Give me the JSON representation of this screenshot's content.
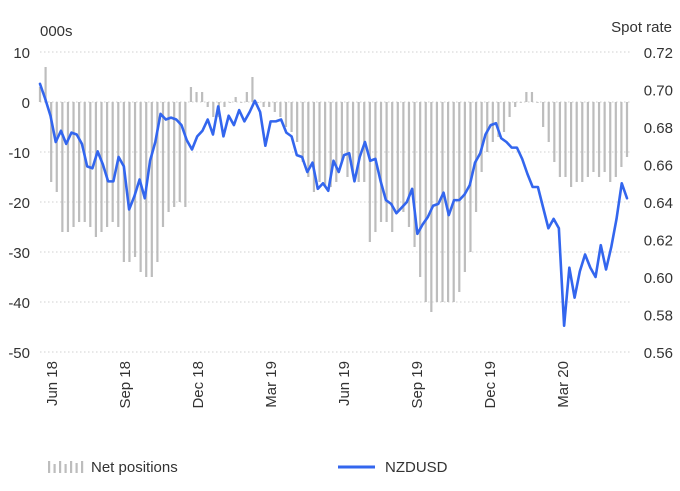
{
  "chart_data": {
    "type": "bar+line",
    "title": "",
    "y_left": {
      "unit_label": "000s",
      "min": -50,
      "max": 10,
      "ticks": [
        10,
        0,
        -10,
        -20,
        -30,
        -40,
        -50
      ]
    },
    "y_right": {
      "unit_label": "Spot rate",
      "min": 0.56,
      "max": 0.72,
      "ticks": [
        "0.72",
        "0.70",
        "0.68",
        "0.66",
        "0.64",
        "0.62",
        "0.60",
        "0.58",
        "0.56"
      ]
    },
    "x_tick_labels": [
      "Jun 18",
      "Sep 18",
      "Dec 18",
      "Mar 19",
      "Jun 19",
      "Sep 19",
      "Dec 19",
      "Mar 20"
    ],
    "grid": true,
    "legend": {
      "position": "bottom",
      "bar_label": "Net positions",
      "line_label": "NZDUSD"
    },
    "colors": {
      "bars": "#bdbdbd",
      "line": "#3366ee",
      "grid": "#d0d0d0",
      "text": "#333333"
    },
    "series": [
      {
        "name": "Net positions",
        "kind": "bar",
        "axis": "left",
        "values": [
          3,
          7,
          -16,
          -18,
          -26,
          -26,
          -25,
          -24,
          -24,
          -25,
          -27,
          -26,
          -25,
          -24,
          -25,
          -32,
          -32,
          -31,
          -34,
          -35,
          -35,
          -32,
          -25,
          -22,
          -21,
          -20,
          -21,
          3,
          2,
          2,
          -1,
          -3,
          -3,
          -1,
          0,
          1,
          0,
          2,
          5,
          0,
          -1,
          -1,
          -2,
          -3,
          -5,
          -6,
          -8,
          -12,
          -15,
          -18,
          -16,
          -17,
          -17,
          -16,
          -12,
          -15,
          -14,
          -16,
          -16,
          -28,
          -26,
          -24,
          -24,
          -26,
          -22,
          -22,
          -25,
          -29,
          -35,
          -40,
          -42,
          -40,
          -40,
          -40,
          -40,
          -38,
          -34,
          -30,
          -22,
          -14,
          -10,
          -8,
          -7,
          -6,
          -3,
          -1,
          0,
          2,
          2,
          0,
          -5,
          -8,
          -12,
          -15,
          -15,
          -17,
          -16,
          -16,
          -15,
          -14,
          -15,
          -14,
          -16,
          -15,
          -13,
          -11
        ]
      },
      {
        "name": "NZDUSD",
        "kind": "line",
        "axis": "right",
        "values": [
          0.703,
          0.695,
          0.686,
          0.672,
          0.678,
          0.671,
          0.677,
          0.676,
          0.671,
          0.659,
          0.658,
          0.667,
          0.66,
          0.651,
          0.651,
          0.664,
          0.659,
          0.636,
          0.643,
          0.652,
          0.642,
          0.662,
          0.672,
          0.687,
          0.684,
          0.685,
          0.684,
          0.681,
          0.673,
          0.668,
          0.675,
          0.678,
          0.684,
          0.676,
          0.691,
          0.675,
          0.686,
          0.681,
          0.689,
          0.683,
          0.688,
          0.694,
          0.688,
          0.67,
          0.683,
          0.683,
          0.684,
          0.677,
          0.675,
          0.665,
          0.664,
          0.656,
          0.661,
          0.647,
          0.65,
          0.646,
          0.662,
          0.656,
          0.665,
          0.666,
          0.651,
          0.664,
          0.672,
          0.662,
          0.663,
          0.651,
          0.641,
          0.639,
          0.634,
          0.637,
          0.64,
          0.647,
          0.623,
          0.628,
          0.632,
          0.638,
          0.639,
          0.645,
          0.633,
          0.641,
          0.641,
          0.644,
          0.649,
          0.661,
          0.666,
          0.676,
          0.681,
          0.682,
          0.674,
          0.672,
          0.669,
          0.669,
          0.663,
          0.655,
          0.648,
          0.648,
          0.637,
          0.626,
          0.631,
          0.626,
          0.574,
          0.605,
          0.589,
          0.603,
          0.612,
          0.605,
          0.6,
          0.617,
          0.604,
          0.616,
          0.631,
          0.65,
          0.642
        ]
      }
    ]
  }
}
